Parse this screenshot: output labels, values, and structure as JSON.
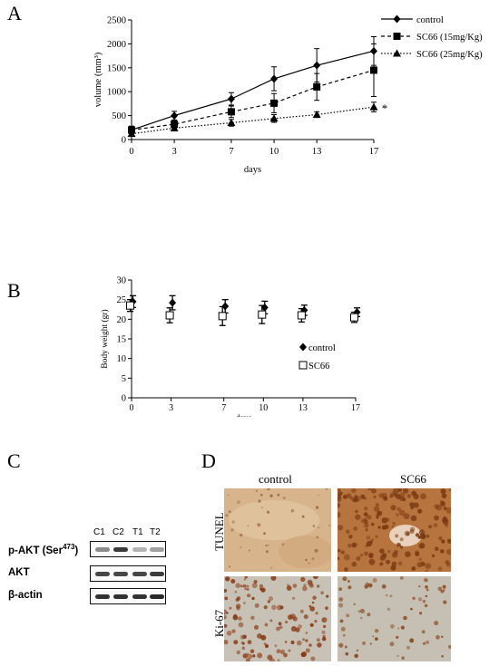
{
  "panel_labels": {
    "A": "A",
    "B": "B",
    "C": "C",
    "D": "D"
  },
  "chart_data": [
    {
      "type": "line",
      "panel": "A",
      "xlabel": "days",
      "ylabel": "volume (mm³)",
      "x": [
        0,
        3,
        7,
        10,
        13,
        17
      ],
      "xticks": [
        "0",
        "3",
        "7",
        "10",
        "13",
        "17"
      ],
      "ylim": [
        0,
        2500
      ],
      "yticks": [
        "0",
        "500",
        "1000",
        "1500",
        "2000",
        "2500"
      ],
      "grid": false,
      "legend_position": "right",
      "series": [
        {
          "name": "control",
          "marker": "diamond",
          "line": "solid",
          "values": [
            200,
            500,
            850,
            1270,
            1550,
            1850
          ],
          "errors": [
            80,
            90,
            130,
            250,
            350,
            300
          ]
        },
        {
          "name": "SC66 (15mg/Kg)",
          "marker": "square",
          "line": "dashed",
          "values": [
            200,
            320,
            580,
            760,
            1100,
            1450
          ],
          "errors": [
            70,
            80,
            120,
            200,
            280,
            550
          ]
        },
        {
          "name": "SC66 (25mg/Kg)",
          "marker": "triangle",
          "line": "dotted",
          "values": [
            120,
            240,
            350,
            440,
            520,
            680
          ],
          "errors": [
            40,
            60,
            70,
            80,
            60,
            100
          ]
        }
      ],
      "annotations": [
        "*"
      ]
    },
    {
      "type": "scatter",
      "panel": "B",
      "xlabel": "days",
      "ylabel": "Body weight (gr)",
      "x": [
        0,
        3,
        7,
        10,
        13,
        17
      ],
      "xticks": [
        "0",
        "3",
        "7",
        "10",
        "13",
        "17"
      ],
      "ylim": [
        0,
        30
      ],
      "yticks": [
        "0",
        "5",
        "10",
        "15",
        "20",
        "25",
        "30"
      ],
      "grid": false,
      "legend_position": "bottom-right",
      "series": [
        {
          "name": "control",
          "marker": "filled-diamond",
          "values": [
            24.5,
            24.2,
            23.3,
            23.0,
            22.3,
            21.8
          ],
          "errors": [
            1.5,
            1.8,
            1.7,
            1.6,
            1.3,
            1.1
          ]
        },
        {
          "name": "SC66",
          "marker": "open-square",
          "values": [
            23.5,
            21.0,
            20.8,
            21.2,
            21.0,
            20.5
          ],
          "errors": [
            1.5,
            1.9,
            2.4,
            2.3,
            1.7,
            1.3
          ]
        }
      ]
    }
  ],
  "blot": {
    "lanes": [
      "C1",
      "C2",
      "T1",
      "T2"
    ],
    "rows": [
      {
        "label_main": "p-AKT (Ser",
        "label_sup": "473",
        "label_end": ")",
        "intensity": [
          0.45,
          0.85,
          0.25,
          0.35
        ]
      },
      {
        "label_main": "AKT",
        "label_sup": "",
        "label_end": "",
        "intensity": [
          0.8,
          0.8,
          0.8,
          0.85
        ]
      },
      {
        "label_main": "β-actin",
        "label_sup": "",
        "label_end": "",
        "intensity": [
          0.9,
          0.9,
          0.9,
          0.95
        ]
      }
    ]
  },
  "micrographs": {
    "columns": [
      "control",
      "SC66"
    ],
    "rows": [
      "TUNEL",
      "Ki-67"
    ]
  },
  "colors": {
    "ink": "#000000",
    "tunel_control_bg": "#d8b48c",
    "tunel_sc66_bg": "#b8743e",
    "ki67_bg": "#c8c2b6",
    "nucleus_brown": "#7a3a12"
  }
}
